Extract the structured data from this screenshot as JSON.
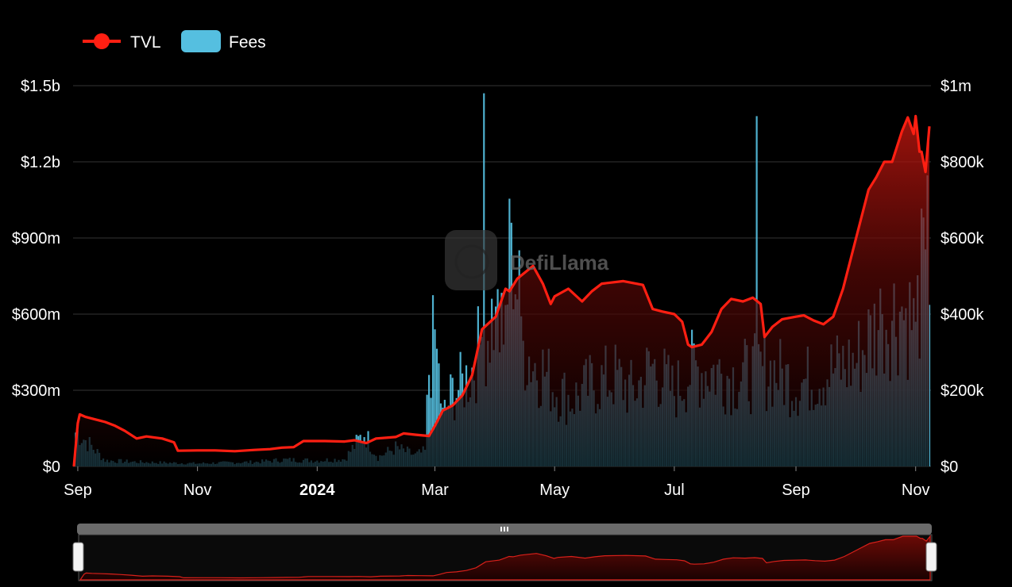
{
  "legend": {
    "tvl_label": "TVL",
    "fees_label": "Fees"
  },
  "watermark": "DefiLlama",
  "colors": {
    "tvl": "#ff1f12",
    "fees": "#55bfe0",
    "grid": "#333333",
    "background": "#000000"
  },
  "chart_data": {
    "type": "line",
    "title": "",
    "left_axis": {
      "ticks": [
        "$0",
        "$300m",
        "$600m",
        "$900m",
        "$1.2b",
        "$1.5b"
      ],
      "ylim": [
        0,
        1500
      ]
    },
    "right_axis": {
      "ticks": [
        "$0",
        "$200k",
        "$400k",
        "$600k",
        "$800k",
        "$1m"
      ],
      "ylim": [
        0,
        1000
      ]
    },
    "x_ticks": [
      {
        "date": "2023-09-01",
        "label": "Sep"
      },
      {
        "date": "2023-11-01",
        "label": "Nov"
      },
      {
        "date": "2024-01-01",
        "label": "2024",
        "bold": true
      },
      {
        "date": "2024-03-01",
        "label": "Mar"
      },
      {
        "date": "2024-05-01",
        "label": "May"
      },
      {
        "date": "2024-07-01",
        "label": "Jul"
      },
      {
        "date": "2024-09-01",
        "label": "Sep"
      },
      {
        "date": "2024-11-01",
        "label": "Nov"
      }
    ],
    "x_range": [
      "2023-08-30",
      "2024-11-08"
    ],
    "grid": true,
    "legend_position": "top-left",
    "series": [
      {
        "name": "TVL",
        "axis": "left",
        "unit": "USD millions",
        "style": "line-with-area",
        "points": [
          [
            "2023-08-30",
            0
          ],
          [
            "2023-09-01",
            170
          ],
          [
            "2023-09-02",
            205
          ],
          [
            "2023-09-05",
            195
          ],
          [
            "2023-09-10",
            185
          ],
          [
            "2023-09-15",
            175
          ],
          [
            "2023-09-20",
            160
          ],
          [
            "2023-09-25",
            140
          ],
          [
            "2023-10-01",
            110
          ],
          [
            "2023-10-06",
            118
          ],
          [
            "2023-10-14",
            110
          ],
          [
            "2023-10-20",
            95
          ],
          [
            "2023-10-22",
            62
          ],
          [
            "2023-11-01",
            63
          ],
          [
            "2023-11-10",
            63
          ],
          [
            "2023-11-20",
            60
          ],
          [
            "2023-11-30",
            65
          ],
          [
            "2023-12-08",
            68
          ],
          [
            "2023-12-14",
            74
          ],
          [
            "2023-12-20",
            76
          ],
          [
            "2023-12-25",
            100
          ],
          [
            "2024-01-05",
            100
          ],
          [
            "2024-01-15",
            98
          ],
          [
            "2024-01-20",
            103
          ],
          [
            "2024-01-26",
            92
          ],
          [
            "2024-01-31",
            110
          ],
          [
            "2024-02-10",
            116
          ],
          [
            "2024-02-14",
            130
          ],
          [
            "2024-02-20",
            125
          ],
          [
            "2024-02-27",
            120
          ],
          [
            "2024-03-01",
            160
          ],
          [
            "2024-03-05",
            220
          ],
          [
            "2024-03-10",
            240
          ],
          [
            "2024-03-15",
            280
          ],
          [
            "2024-03-20",
            360
          ],
          [
            "2024-03-25",
            540
          ],
          [
            "2024-04-01",
            590
          ],
          [
            "2024-04-06",
            700
          ],
          [
            "2024-04-08",
            690
          ],
          [
            "2024-04-12",
            740
          ],
          [
            "2024-04-20",
            790
          ],
          [
            "2024-04-25",
            720
          ],
          [
            "2024-04-29",
            640
          ],
          [
            "2024-05-01",
            670
          ],
          [
            "2024-05-08",
            700
          ],
          [
            "2024-05-15",
            650
          ],
          [
            "2024-05-20",
            690
          ],
          [
            "2024-05-25",
            720
          ],
          [
            "2024-06-05",
            730
          ],
          [
            "2024-06-15",
            715
          ],
          [
            "2024-06-20",
            620
          ],
          [
            "2024-06-25",
            610
          ],
          [
            "2024-07-01",
            600
          ],
          [
            "2024-07-05",
            570
          ],
          [
            "2024-07-08",
            480
          ],
          [
            "2024-07-10",
            470
          ],
          [
            "2024-07-15",
            480
          ],
          [
            "2024-07-20",
            530
          ],
          [
            "2024-07-25",
            620
          ],
          [
            "2024-07-30",
            660
          ],
          [
            "2024-08-05",
            650
          ],
          [
            "2024-08-10",
            665
          ],
          [
            "2024-08-14",
            640
          ],
          [
            "2024-08-16",
            510
          ],
          [
            "2024-08-20",
            550
          ],
          [
            "2024-08-25",
            580
          ],
          [
            "2024-09-01",
            590
          ],
          [
            "2024-09-05",
            595
          ],
          [
            "2024-09-10",
            575
          ],
          [
            "2024-09-15",
            560
          ],
          [
            "2024-09-20",
            590
          ],
          [
            "2024-09-25",
            700
          ],
          [
            "2024-10-01",
            880
          ],
          [
            "2024-10-08",
            1090
          ],
          [
            "2024-10-12",
            1140
          ],
          [
            "2024-10-16",
            1200
          ],
          [
            "2024-10-20",
            1200
          ],
          [
            "2024-10-25",
            1320
          ],
          [
            "2024-10-28",
            1375
          ],
          [
            "2024-10-31",
            1310
          ],
          [
            "2024-11-01",
            1380
          ],
          [
            "2024-11-03",
            1240
          ],
          [
            "2024-11-04",
            1240
          ],
          [
            "2024-11-06",
            1160
          ],
          [
            "2024-11-08",
            1340
          ]
        ]
      },
      {
        "name": "Fees",
        "axis": "right",
        "unit": "USD thousands",
        "style": "bar",
        "points": [
          [
            "2023-09-01",
            92
          ],
          [
            "2023-09-15",
            16
          ],
          [
            "2023-10-01",
            12
          ],
          [
            "2023-10-15",
            10
          ],
          [
            "2023-11-01",
            8
          ],
          [
            "2023-11-15",
            10
          ],
          [
            "2023-12-01",
            12
          ],
          [
            "2023-12-15",
            18
          ],
          [
            "2024-01-01",
            16
          ],
          [
            "2024-01-15",
            20
          ],
          [
            "2024-01-25",
            90
          ],
          [
            "2024-02-01",
            25
          ],
          [
            "2024-02-10",
            50
          ],
          [
            "2024-02-20",
            30
          ],
          [
            "2024-02-25",
            40
          ],
          [
            "2024-02-27",
            260
          ],
          [
            "2024-03-01",
            360
          ],
          [
            "2024-03-05",
            130
          ],
          [
            "2024-03-10",
            200
          ],
          [
            "2024-03-15",
            220
          ],
          [
            "2024-03-20",
            260
          ],
          [
            "2024-03-25",
            340
          ],
          [
            "2024-03-26",
            980
          ],
          [
            "2024-04-01",
            420
          ],
          [
            "2024-04-05",
            320
          ],
          [
            "2024-04-09",
            640
          ],
          [
            "2024-04-15",
            330
          ],
          [
            "2024-04-20",
            280
          ],
          [
            "2024-04-25",
            260
          ],
          [
            "2024-05-01",
            210
          ],
          [
            "2024-05-10",
            180
          ],
          [
            "2024-05-20",
            220
          ],
          [
            "2024-06-01",
            240
          ],
          [
            "2024-06-10",
            200
          ],
          [
            "2024-06-20",
            270
          ],
          [
            "2024-07-01",
            200
          ],
          [
            "2024-07-10",
            260
          ],
          [
            "2024-07-20",
            260
          ],
          [
            "2024-08-01",
            240
          ],
          [
            "2024-08-12",
            920
          ],
          [
            "2024-08-20",
            260
          ],
          [
            "2024-09-01",
            220
          ],
          [
            "2024-09-15",
            250
          ],
          [
            "2024-10-01",
            280
          ],
          [
            "2024-10-15",
            400
          ],
          [
            "2024-10-25",
            420
          ],
          [
            "2024-11-01",
            380
          ],
          [
            "2024-11-06",
            570
          ]
        ]
      }
    ]
  }
}
